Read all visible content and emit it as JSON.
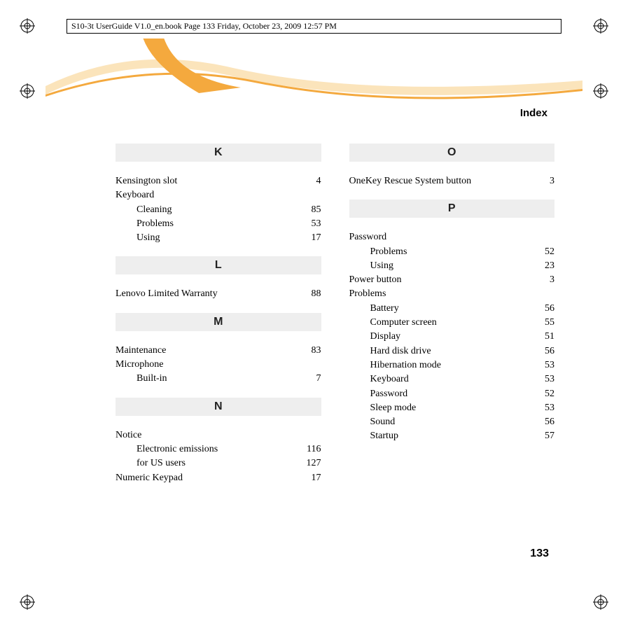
{
  "header_text": "S10-3t UserGuide V1.0_en.book  Page 133  Friday, October 23, 2009  12:57 PM",
  "section_title": "Index",
  "page_number": "133",
  "colors": {
    "letter_bg": "#eeeeee",
    "wave_orange": "#f4a93e",
    "wave_light": "#fbe4bb"
  },
  "left_column": [
    {
      "type": "letter",
      "text": "K"
    },
    {
      "type": "entry",
      "label": "Kensington slot",
      "page": "4"
    },
    {
      "type": "entry",
      "label": "Keyboard",
      "nopage": true
    },
    {
      "type": "sub",
      "label": "Cleaning",
      "page": "85"
    },
    {
      "type": "sub",
      "label": "Problems",
      "page": "53"
    },
    {
      "type": "sub",
      "label": "Using",
      "page": "17"
    },
    {
      "type": "letter",
      "text": "L"
    },
    {
      "type": "entry",
      "label": "Lenovo Limited Warranty",
      "page": "88"
    },
    {
      "type": "letter",
      "text": "M"
    },
    {
      "type": "entry",
      "label": "Maintenance",
      "page": "83"
    },
    {
      "type": "entry",
      "label": "Microphone",
      "nopage": true
    },
    {
      "type": "sub",
      "label": "Built-in",
      "page": "7"
    },
    {
      "type": "letter",
      "text": "N"
    },
    {
      "type": "entry",
      "label": "Notice",
      "nopage": true
    },
    {
      "type": "sub",
      "label": "Electronic emissions",
      "page": "116"
    },
    {
      "type": "sub",
      "label": "for US users",
      "page": "127"
    },
    {
      "type": "entry",
      "label": "Numeric Keypad",
      "page": "17"
    }
  ],
  "right_column": [
    {
      "type": "letter",
      "text": "O"
    },
    {
      "type": "entry",
      "label": "OneKey Rescue System button",
      "page": "3"
    },
    {
      "type": "letter",
      "text": "P"
    },
    {
      "type": "entry",
      "label": "Password",
      "nopage": true
    },
    {
      "type": "sub",
      "label": "Problems",
      "page": "52"
    },
    {
      "type": "sub",
      "label": "Using",
      "page": "23"
    },
    {
      "type": "entry",
      "label": "Power button",
      "page": "3"
    },
    {
      "type": "entry",
      "label": "Problems",
      "nopage": true
    },
    {
      "type": "sub",
      "label": "Battery",
      "page": "56"
    },
    {
      "type": "sub",
      "label": "Computer screen",
      "page": "55"
    },
    {
      "type": "sub",
      "label": "Display",
      "page": "51"
    },
    {
      "type": "sub",
      "label": "Hard disk drive",
      "page": "56"
    },
    {
      "type": "sub",
      "label": "Hibernation mode",
      "page": "53"
    },
    {
      "type": "sub",
      "label": "Keyboard",
      "page": "53"
    },
    {
      "type": "sub",
      "label": "Password",
      "page": "52"
    },
    {
      "type": "sub",
      "label": "Sleep mode",
      "page": "53"
    },
    {
      "type": "sub",
      "label": "Sound",
      "page": "56"
    },
    {
      "type": "sub",
      "label": "Startup",
      "page": "57"
    }
  ]
}
